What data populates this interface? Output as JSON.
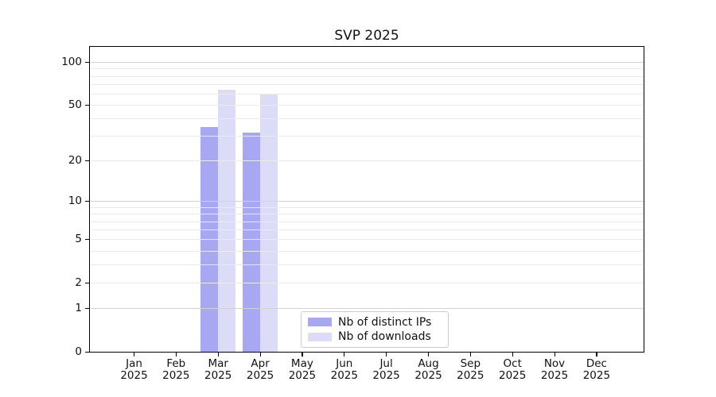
{
  "title": "SVP 2025",
  "chart_data": {
    "type": "bar",
    "title": "SVP 2025",
    "x_months": [
      "Jan",
      "Feb",
      "Mar",
      "Apr",
      "May",
      "Jun",
      "Jul",
      "Aug",
      "Sep",
      "Oct",
      "Nov",
      "Dec"
    ],
    "x_year": "2025",
    "series": [
      {
        "name": "Nb of distinct IPs",
        "color": "#a8a8f2",
        "values": [
          0,
          0,
          35,
          32,
          0,
          0,
          0,
          0,
          0,
          0,
          0,
          0
        ]
      },
      {
        "name": "Nb of downloads",
        "color": "#dcdcf8",
        "values": [
          0,
          0,
          64,
          60,
          0,
          0,
          0,
          0,
          0,
          0,
          0,
          0
        ]
      }
    ],
    "yscale": "log1p",
    "ylim": [
      0,
      100
    ],
    "ytick_labels": [
      0,
      1,
      2,
      5,
      10,
      20,
      50,
      100
    ],
    "grid_major": [
      1,
      10,
      100
    ],
    "grid_minor": [
      2,
      3,
      4,
      5,
      6,
      7,
      8,
      9,
      20,
      30,
      40,
      50,
      60,
      70,
      80,
      90
    ],
    "grid": "horizontal",
    "legend_position": "lower center"
  },
  "colors": {
    "grid_major": "#d2d2d2",
    "grid_minor": "#ebebeb",
    "axis": "#000000",
    "text": "#111111",
    "legend_border": "#cccccc"
  }
}
